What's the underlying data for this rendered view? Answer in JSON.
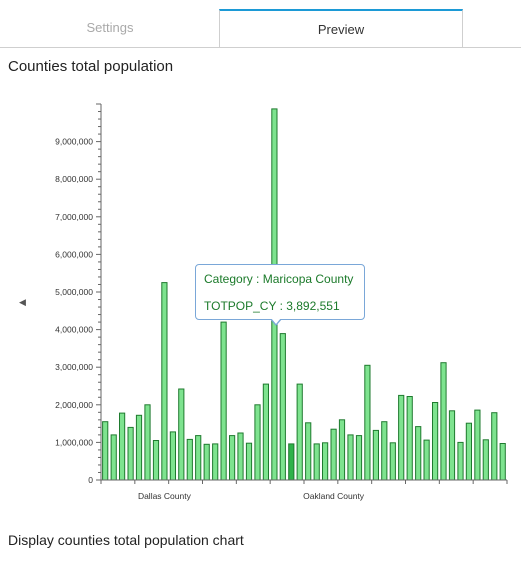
{
  "tabs": {
    "settings": "Settings",
    "preview": "Preview"
  },
  "description": "Display counties total population chart",
  "tooltip": {
    "category_label": "Category : Maricopa County",
    "value_label": "TOTPOP_CY : 3,892,551"
  },
  "colors": {
    "bar_fill": "#7ee38f",
    "bar_stroke": "#1e7a2e",
    "bar_highlight": "#2fb24a",
    "tab_accent": "#1c9ad6"
  },
  "chart_data": {
    "type": "bar",
    "title": "Counties total population",
    "ylim": [
      0,
      10000000
    ],
    "yticks": [
      0,
      1000000,
      2000000,
      3000000,
      4000000,
      5000000,
      6000000,
      7000000,
      8000000,
      9000000
    ],
    "ytick_labels": [
      "0",
      "1,000,000",
      "2,000,000",
      "3,000,000",
      "4,000,000",
      "5,000,000",
      "6,000,000",
      "7,000,000",
      "8,000,000",
      "9,000,000"
    ],
    "visible_category_labels": [
      {
        "index": 7,
        "label": "Dallas County"
      },
      {
        "index": 27,
        "label": "Oakland County"
      }
    ],
    "highlighted_index": 22,
    "values": [
      1550000,
      1200000,
      1780000,
      1400000,
      1720000,
      2000000,
      1050000,
      5250000,
      1280000,
      2420000,
      1080000,
      1180000,
      950000,
      960000,
      4200000,
      1180000,
      1250000,
      980000,
      2000000,
      2550000,
      9870000,
      3892551,
      960000,
      2550000,
      1520000,
      960000,
      990000,
      1350000,
      1600000,
      1200000,
      1180000,
      3050000,
      1320000,
      1550000,
      990000,
      2250000,
      2220000,
      1420000,
      1060000,
      2060000,
      3120000,
      1840000,
      1000000,
      1510000,
      1860000,
      1070000,
      1790000,
      970000
    ]
  }
}
